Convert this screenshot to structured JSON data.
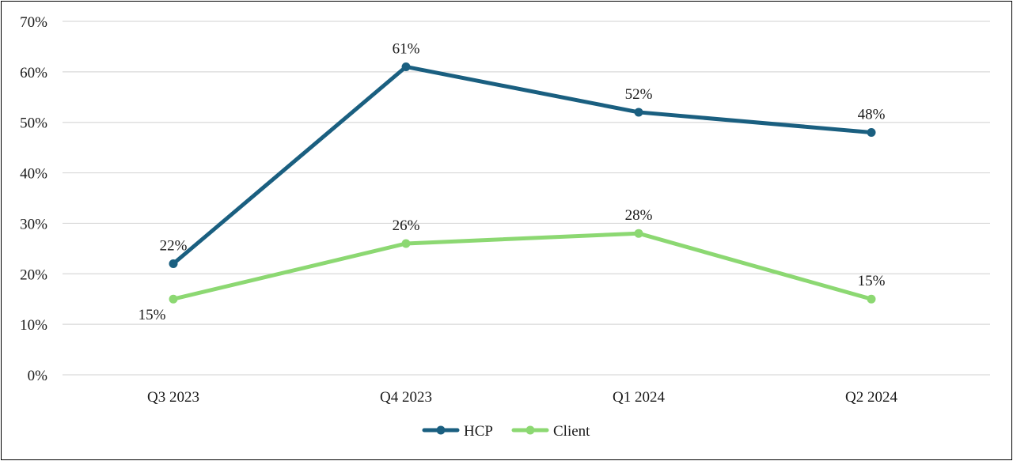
{
  "chart_data": {
    "type": "line",
    "categories": [
      "Q3 2023",
      "Q4 2023",
      "Q1 2024",
      "Q2 2024"
    ],
    "series": [
      {
        "name": "HCP",
        "values": [
          22,
          61,
          52,
          48
        ],
        "labels": [
          "22%",
          "61%",
          "52%",
          "48%"
        ],
        "color": "#1a5f80"
      },
      {
        "name": "Client",
        "values": [
          15,
          26,
          28,
          15
        ],
        "labels": [
          "15%",
          "26%",
          "28%",
          "15%"
        ],
        "color": "#8cd872"
      }
    ],
    "ylim": [
      0,
      70
    ],
    "y_ticks": [
      "0%",
      "10%",
      "20%",
      "30%",
      "40%",
      "50%",
      "60%",
      "70%"
    ],
    "y_tick_values": [
      0,
      10,
      20,
      30,
      40,
      50,
      60,
      70
    ],
    "grid": true,
    "legend_position": "bottom-center"
  }
}
